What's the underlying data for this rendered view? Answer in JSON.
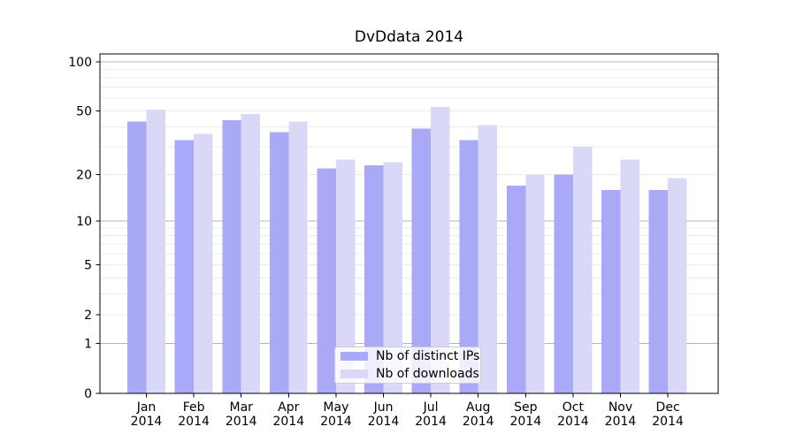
{
  "figure": {
    "title": "DvDdata 2014",
    "background": "#ffffff"
  },
  "chart_data": {
    "type": "bar",
    "title": "DvDdata 2014",
    "categories": [
      "Jan",
      "Feb",
      "Mar",
      "Apr",
      "May",
      "Jun",
      "Jul",
      "Aug",
      "Sep",
      "Oct",
      "Nov",
      "Dec"
    ],
    "category_year": "2014",
    "series": [
      {
        "name": "Nb of distinct IPs",
        "color": "#a9a9f7",
        "values": [
          43,
          33,
          44,
          37,
          22,
          23,
          39,
          33,
          17,
          20,
          16,
          16
        ]
      },
      {
        "name": "Nb of downloads",
        "color": "#d9d9f7",
        "values": [
          51,
          36,
          48,
          43,
          25,
          24,
          53,
          41,
          20,
          30,
          25,
          19
        ]
      }
    ],
    "xlabel": "",
    "ylabel": "",
    "yscale": "log1p",
    "ylim": [
      0,
      112
    ],
    "ytick_values": [
      0,
      1,
      2,
      5,
      10,
      20,
      50,
      100
    ],
    "ytick_labels": [
      "0",
      "1",
      "2",
      "5",
      "10",
      "20",
      "50",
      "100"
    ],
    "grid": {
      "on": true,
      "major_values": [
        1,
        10,
        100
      ],
      "minor_values": [
        2,
        3,
        4,
        5,
        6,
        7,
        8,
        9,
        20,
        30,
        40,
        50,
        60,
        70,
        80,
        90
      ],
      "major_color": "#b5b5b5",
      "minor_color": "#ebebeb"
    },
    "legend": {
      "position": "lower center",
      "entries": [
        "Nb of distinct IPs",
        "Nb of downloads"
      ]
    },
    "axis_color": "#000000"
  }
}
